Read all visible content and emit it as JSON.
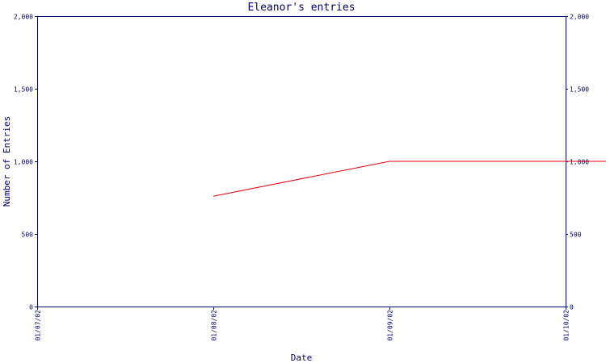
{
  "chart_data": {
    "type": "line",
    "title": "Eleanor's entries",
    "xlabel": "Date",
    "ylabel": "Number of Entries",
    "x_ticks": [
      "01/07/02",
      "01/08/02",
      "01/09/02",
      "01/10/02"
    ],
    "x_range": [
      "01/07/02",
      "01/10/02"
    ],
    "y_ticks": [
      0,
      500,
      1000,
      1500,
      2000
    ],
    "y_tick_labels": [
      "0",
      "500",
      "1,000",
      "1,500",
      "2,000"
    ],
    "ylim": [
      0,
      2000
    ],
    "right_axis_mirrored": true,
    "grid": false,
    "series": [
      {
        "color": "#e8000b",
        "points": [
          {
            "x": "01/08/02",
            "y": 760
          },
          {
            "x": "01/09/02",
            "y": 1000
          },
          {
            "x": "01/09/18",
            "y": 1140
          }
        ]
      }
    ]
  }
}
